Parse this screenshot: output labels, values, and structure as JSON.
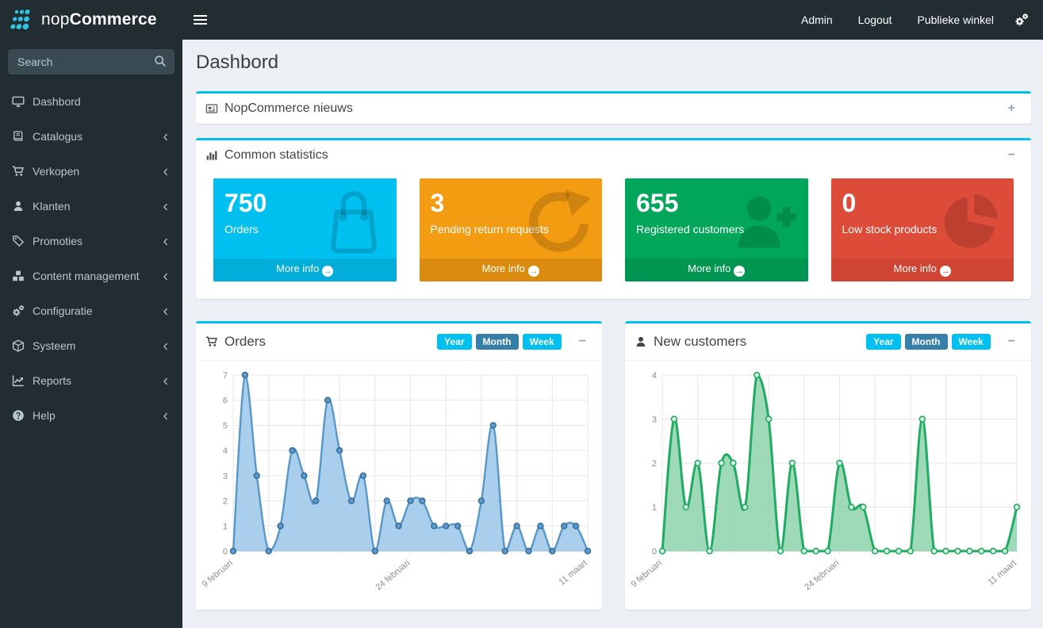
{
  "brand": {
    "name_light": "nop",
    "name_bold": "Commerce"
  },
  "topbar": {
    "links": [
      {
        "label": "Admin"
      },
      {
        "label": "Logout"
      },
      {
        "label": "Publieke winkel"
      }
    ],
    "settings_icon": "gears-icon"
  },
  "sidebar": {
    "search": {
      "placeholder": "Search",
      "value": "",
      "icon": "search-icon"
    },
    "items": [
      {
        "label": "Dashbord",
        "icon": "desktop-icon",
        "expandable": false
      },
      {
        "label": "Catalogus",
        "icon": "book-icon",
        "expandable": true
      },
      {
        "label": "Verkopen",
        "icon": "cart-icon",
        "expandable": true
      },
      {
        "label": "Klanten",
        "icon": "user-icon",
        "expandable": true
      },
      {
        "label": "Promoties",
        "icon": "tags-icon",
        "expandable": true
      },
      {
        "label": "Content management",
        "icon": "cubes-icon",
        "expandable": true
      },
      {
        "label": "Configuratie",
        "icon": "gears-icon",
        "expandable": true
      },
      {
        "label": "Systeem",
        "icon": "cube-icon",
        "expandable": true
      },
      {
        "label": "Reports",
        "icon": "line-chart-icon",
        "expandable": true
      },
      {
        "label": "Help",
        "icon": "question-icon",
        "expandable": true
      }
    ]
  },
  "page": {
    "title": "Dashbord"
  },
  "news_panel": {
    "title": "NopCommerce nieuws",
    "icon": "newspaper-icon",
    "collapse_glyph": "+"
  },
  "stats_panel": {
    "title": "Common statistics",
    "icon": "bar-chart-icon",
    "collapse_glyph": "−"
  },
  "stat_boxes": [
    {
      "value": "750",
      "label": "Orders",
      "more_info": "More info",
      "icon": "shopping-bag-icon",
      "bg": "#00c0ef",
      "footer_bg": "#00aed9"
    },
    {
      "value": "3",
      "label": "Pending return requests",
      "more_info": "More info",
      "icon": "refresh-icon",
      "bg": "#f39c12",
      "footer_bg": "#db8c10"
    },
    {
      "value": "655",
      "label": "Registered customers",
      "more_info": "More info",
      "icon": "user-plus-icon",
      "bg": "#00a65a",
      "footer_bg": "#009551"
    },
    {
      "value": "0",
      "label": "Low stock products",
      "more_info": "More info",
      "icon": "pie-chart-icon",
      "bg": "#dd4b39",
      "footer_bg": "#d04433"
    }
  ],
  "chart_data": [
    {
      "type": "area",
      "title": "Orders",
      "icon": "cart-icon",
      "range_buttons": [
        "Year",
        "Month",
        "Week"
      ],
      "active_range": "Month",
      "collapse_glyph": "−",
      "x_count": 31,
      "x_tick_labels": [
        "9 februari",
        "24 februari",
        "11 maart"
      ],
      "x_tick_indices": [
        0,
        15,
        30
      ],
      "values": [
        0,
        7,
        3,
        0,
        1,
        4,
        3,
        2,
        6,
        4,
        2,
        3,
        0,
        2,
        1,
        2,
        2,
        1,
        1,
        1,
        0,
        2,
        5,
        0,
        1,
        0,
        1,
        0,
        1,
        1,
        0
      ],
      "ylim": [
        0,
        7
      ],
      "y_ticks": [
        0,
        1,
        2,
        3,
        4,
        5,
        6,
        7
      ],
      "grid": true,
      "line_color": "#5897c8",
      "line_width": 2.4,
      "fill_color": "rgba(154,199,233,0.85)",
      "point_fill": "#5b9bd0",
      "point_stroke": "#3a6e99"
    },
    {
      "type": "area",
      "title": "New customers",
      "icon": "user-icon",
      "range_buttons": [
        "Year",
        "Month",
        "Week"
      ],
      "active_range": "Month",
      "collapse_glyph": "−",
      "x_count": 31,
      "x_tick_labels": [
        "9 februari",
        "24 februari",
        "11 maart"
      ],
      "x_tick_indices": [
        0,
        15,
        30
      ],
      "values": [
        0,
        3,
        1,
        2,
        0,
        2,
        2,
        1,
        4,
        3,
        0,
        2,
        0,
        0,
        0,
        2,
        1,
        1,
        0,
        0,
        0,
        0,
        3,
        0,
        0,
        0,
        0,
        0,
        0,
        0,
        1
      ],
      "ylim": [
        0,
        4
      ],
      "y_ticks": [
        0,
        1,
        2,
        3,
        4
      ],
      "grid": true,
      "line_color": "#1fab61",
      "line_width": 3,
      "fill_color": "rgba(134,209,166,0.8)",
      "point_fill": "#d9f2e4",
      "point_stroke": "#1fab61"
    }
  ],
  "colors": {
    "accent": "#00c0ef",
    "active_range_bg": "#367fa9",
    "topbar_bg": "#222d32",
    "sidebar_bg": "#222d32",
    "content_bg": "#ecf0f5",
    "logo_dot": "#31c3e3"
  }
}
